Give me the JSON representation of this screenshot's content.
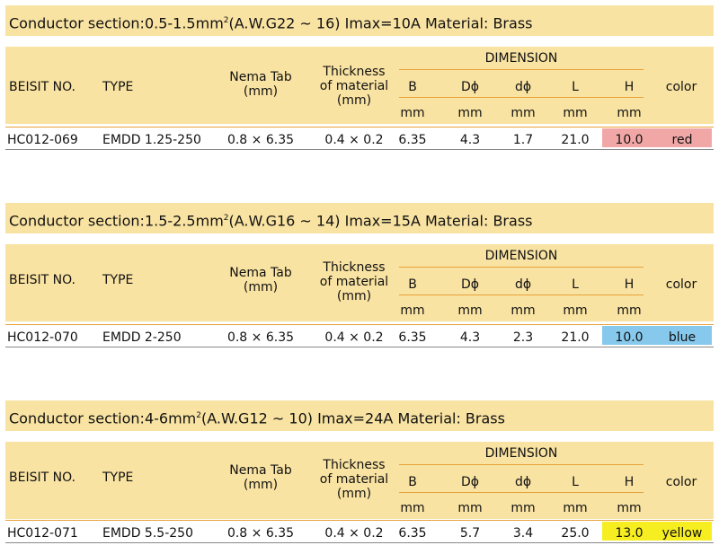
{
  "headers": {
    "beisit_no": "BEISIT NO.",
    "type": "TYPE",
    "nema_tab_1": "Nema Tab",
    "nema_tab_2": "(mm)",
    "thickness_1": "Thickness",
    "thickness_2": "of material",
    "thickness_3": "(mm)",
    "dimension": "DIMENSION",
    "b": "B",
    "d_phi_upper": "Dϕ",
    "d_phi_lower": "dϕ",
    "l": "L",
    "h": "H",
    "unit": "mm",
    "color": "color"
  },
  "sections": [
    {
      "title_pre": "Conductor section:0.5-1.5mm",
      "title_sup": "2",
      "title_post": "(A.W.G22 ~ 16)  Imax=10A     Material: Brass",
      "row": {
        "beisit_no": "HC012-069",
        "type": "EMDD 1.25-250",
        "nema_tab": "0.8 × 6.35",
        "thickness": "0.4 × 0.2",
        "b": "6.35",
        "d_upper": "4.3",
        "d_lower": "1.7",
        "l": "21.0",
        "h": "10.0",
        "color": "red",
        "highlight": "#f2a7a7"
      }
    },
    {
      "title_pre": "Conductor section:1.5-2.5mm",
      "title_sup": "2",
      "title_post": "(A.W.G16 ~ 14)  Imax=15A     Material: Brass",
      "row": {
        "beisit_no": "HC012-070",
        "type": "EMDD 2-250",
        "nema_tab": "0.8 × 6.35",
        "thickness": "0.4 × 0.2",
        "b": "6.35",
        "d_upper": "4.3",
        "d_lower": "2.3",
        "l": "21.0",
        "h": "10.0",
        "color": "blue",
        "highlight": "#86c9ec"
      }
    },
    {
      "title_pre": "Conductor section:4-6mm",
      "title_sup": "2",
      "title_post": "(A.W.G12 ~ 10)  Imax=24A     Material: Brass",
      "row": {
        "beisit_no": "HC012-071",
        "type": "EMDD 5.5-250",
        "nema_tab": "0.8 × 6.35",
        "thickness": "0.4 × 0.2",
        "b": "6.35",
        "d_upper": "5.7",
        "d_lower": "3.4",
        "l": "25.0",
        "h": "13.0",
        "color": "yellow",
        "highlight": "#f7ee22"
      }
    }
  ]
}
